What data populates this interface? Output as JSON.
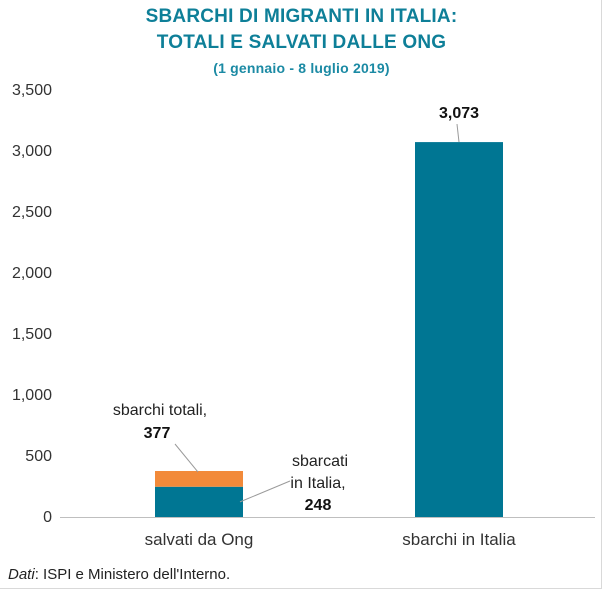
{
  "chart_data": {
    "type": "bar",
    "title_line1": "SBARCHI DI MIGRANTI IN ITALIA:",
    "title_line2": "TOTALI E SALVATI DALLE ONG",
    "subtitle": "(1 gennaio - 8 luglio 2019)",
    "categories": [
      "salvati da Ong",
      "sbarchi in Italia"
    ],
    "series": [
      {
        "name": "sbarcati in Italia",
        "values": [
          248,
          3073
        ]
      },
      {
        "name": "sbarchi totali (non sbarcati)",
        "values": [
          129,
          0
        ]
      }
    ],
    "ylim": [
      0,
      3500
    ],
    "yticks": [
      "0",
      "500",
      "1,000",
      "1,500",
      "2,000",
      "2,500",
      "3,000",
      "3,500"
    ],
    "ytick_values": [
      0,
      500,
      1000,
      1500,
      2000,
      2500,
      3000,
      3500
    ],
    "data_labels": [
      "3,073"
    ],
    "annotations": {
      "totali_line1": "sbarchi totali,",
      "totali_value": "377",
      "sbarcati_line1": "sbarcati",
      "sbarcati_line2": "in Italia,",
      "sbarcati_value": "248"
    },
    "colors": {
      "teal": "#007693",
      "orange": "#f28a3a",
      "title": "#0e7f98"
    },
    "grid": false
  },
  "source": {
    "label": "Dati",
    "text": ": ISPI e Ministero dell'Interno."
  }
}
